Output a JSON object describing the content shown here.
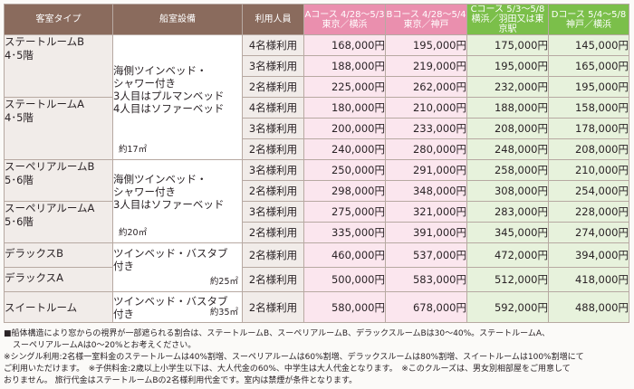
{
  "headers": {
    "room_type": "客室タイプ",
    "facility": "船室設備",
    "occupancy": "利用人員",
    "course_a_line1": "Aコース 4/28〜5/3",
    "course_a_line2": "東京／横浜",
    "course_b_line1": "Bコース 4/28〜5/4",
    "course_b_line2": "東京／神戸",
    "course_c_line1": "Cコース 5/3〜5/8",
    "course_c_line2": "横浜／羽田又は東京駅",
    "course_d_line1": "Dコース 5/4〜5/8",
    "course_d_line2": "神戸／横浜"
  },
  "facilities": {
    "f1_line1": "海側ツインベッド・",
    "f1_line2": "シャワー付き",
    "f1_line3": "3人目はプルマンベッド",
    "f1_line4": "4人目はソファーベッド",
    "f1_area": "約17㎡",
    "f2_line1": "海側ツインベッド・",
    "f2_line2": "シャワー付き",
    "f2_line3": "3人目はソファーベッド",
    "f2_area": "約20㎡",
    "f3_line1": "ツインベッド・バスタブ",
    "f3_line2": "付き",
    "f3_area": "約25㎡",
    "f4_line1": "ツインベッド・バスタブ",
    "f4_line2": "付き",
    "f4_area": "約35㎡"
  },
  "rooms": {
    "sr_b_line1": "ステートルームB",
    "sr_b_line2": "4･5階",
    "sr_a_line1": "ステートルームA",
    "sr_a_line2": "4･5階",
    "sup_b_line1": "スーペリアルームB",
    "sup_b_line2": "5･6階",
    "sup_a_line1": "スーペリアルームA",
    "sup_a_line2": "5･6階",
    "dlx_b": "デラックスB",
    "dlx_a": "デラックスA",
    "suite": "スイートルーム"
  },
  "rows": [
    {
      "occ": "4名様利用",
      "a": "168,000円",
      "b": "195,000円",
      "c": "175,000円",
      "d": "145,000円"
    },
    {
      "occ": "3名様利用",
      "a": "188,000円",
      "b": "219,000円",
      "c": "195,000円",
      "d": "165,000円"
    },
    {
      "occ": "2名様利用",
      "a": "225,000円",
      "b": "262,000円",
      "c": "232,000円",
      "d": "195,000円"
    },
    {
      "occ": "4名様利用",
      "a": "180,000円",
      "b": "210,000円",
      "c": "188,000円",
      "d": "158,000円"
    },
    {
      "occ": "3名様利用",
      "a": "200,000円",
      "b": "233,000円",
      "c": "208,000円",
      "d": "178,000円"
    },
    {
      "occ": "2名様利用",
      "a": "240,000円",
      "b": "280,000円",
      "c": "248,000円",
      "d": "208,000円"
    },
    {
      "occ": "3名様利用",
      "a": "250,000円",
      "b": "291,000円",
      "c": "258,000円",
      "d": "210,000円"
    },
    {
      "occ": "2名様利用",
      "a": "298,000円",
      "b": "348,000円",
      "c": "308,000円",
      "d": "254,000円"
    },
    {
      "occ": "3名様利用",
      "a": "275,000円",
      "b": "321,000円",
      "c": "283,000円",
      "d": "228,000円"
    },
    {
      "occ": "2名様利用",
      "a": "335,000円",
      "b": "391,000円",
      "c": "345,000円",
      "d": "274,000円"
    },
    {
      "occ": "2名様利用",
      "a": "460,000円",
      "b": "537,000円",
      "c": "472,000円",
      "d": "394,000円"
    },
    {
      "occ": "2名様利用",
      "a": "500,000円",
      "b": "583,000円",
      "c": "512,000円",
      "d": "418,000円"
    },
    {
      "occ": "2名様利用",
      "a": "580,000円",
      "b": "678,000円",
      "c": "592,000円",
      "d": "488,000円"
    }
  ],
  "notes": {
    "n1": "■船体構造により窓からの視界が一部遮られる割合は、ステートルームB、スーペリアルームB、デラックスルームBは30〜40%。ステートルームA、",
    "n2": "スーペリアルームAは0〜20%とお考えください。",
    "n3": "※シングル利用:2名様一室料金のステートルームは40%割増、スーペリアルームは60%割増、デラックスルームは80%割増、スイートルームは100%割増にて",
    "n4": "ご利用いただけます。　※子供料金:2歳以上小学生以下は、大人代金の60%、中学生は大人代金となります。　※このクルーズは、男女別相部屋をご用意して",
    "n5": "おりません。 旅行代金はステートルームBの2名様利用代金です。室内は禁煙が条件となります。"
  }
}
